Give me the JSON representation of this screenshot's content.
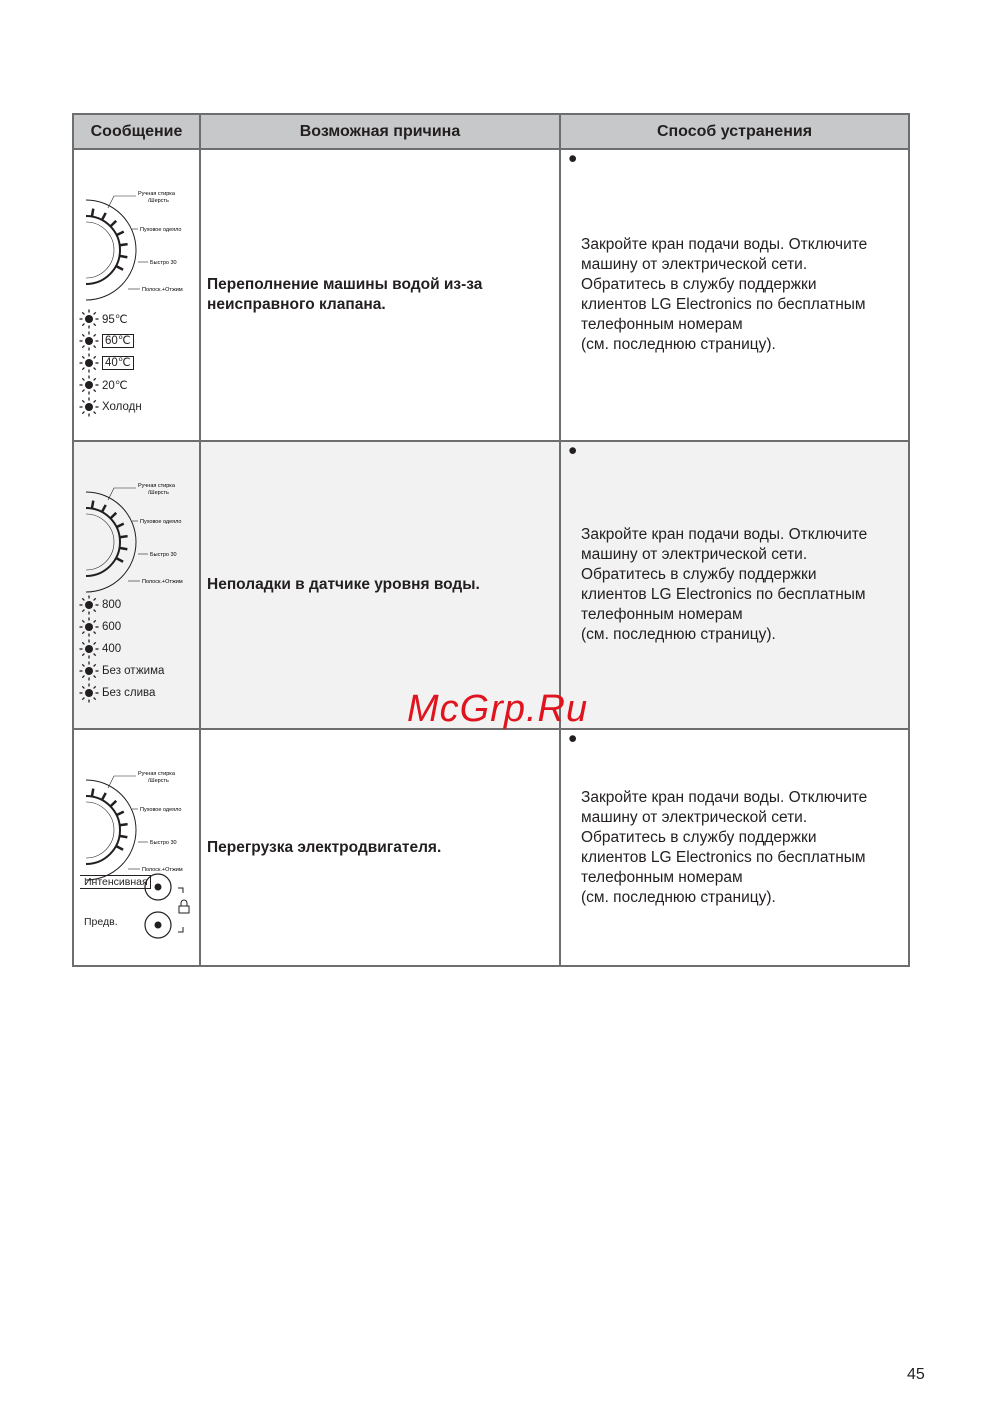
{
  "table": {
    "headers": [
      "Сообщение",
      "Возможная причина",
      "Способ устранения"
    ],
    "dial_labels": [
      "Ручная стирка",
      "/Шерсть",
      "Пуховое одеяло",
      "Быстро 30",
      "Полоск.+Отжим"
    ],
    "rows": [
      {
        "indicators": [
          "95℃",
          "60℃",
          "40℃",
          "20℃",
          "Холодн"
        ],
        "cause": "Переполнение машины водой из-за неисправного клапана.",
        "fix": [
          "Закройте кран подачи воды. Отключите",
          "машину от электрической сети.",
          "Обратитесь в службу поддержки",
          "клиентов LG Electronics по бесплатным",
          "телефонным номерам",
          "(см. последнюю страницу)."
        ]
      },
      {
        "indicators": [
          "800",
          "600",
          "400",
          "Без отжима",
          "Без слива"
        ],
        "cause": "Неполадки в датчике уровня воды.",
        "fix": [
          "Закройте кран подачи воды. Отключите",
          "машину от электрической сети.",
          "Обратитесь в службу поддержки",
          "клиентов LG Electronics по бесплатным",
          "телефонным номерам",
          "(см. последнюю страницу)."
        ]
      },
      {
        "indicators": [
          "Интенсивная",
          "Предв."
        ],
        "cause": "Перегрузка электродвигателя.",
        "fix": [
          "Закройте кран подачи воды. Отключите",
          "машину от электрической сети.",
          "Обратитесь в службу поддержки",
          "клиентов LG Electronics по бесплатным",
          "телефонным номерам",
          "(см. последнюю страницу)."
        ]
      }
    ]
  },
  "watermark": "McGrp.Ru",
  "page_number": "45",
  "colors": {
    "header_bg": "#c7c8ca",
    "row_alt_bg": "#f1f2f1",
    "watermark": "#e0141e"
  }
}
